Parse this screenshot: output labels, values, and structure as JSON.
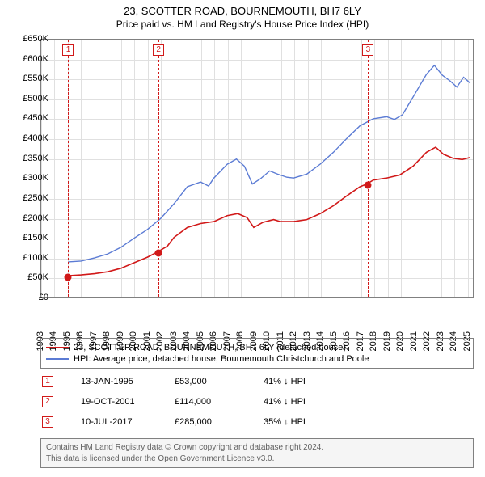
{
  "title_line1": "23, SCOTTER ROAD, BOURNEMOUTH, BH7 6LY",
  "title_line2": "Price paid vs. HM Land Registry's House Price Index (HPI)",
  "chart": {
    "type": "line",
    "background_color": "#ffffff",
    "grid_color": "#e0e0e0",
    "border_color": "#808080",
    "x_years": [
      1993,
      1994,
      1995,
      1996,
      1997,
      1998,
      1999,
      2000,
      2001,
      2002,
      2003,
      2004,
      2005,
      2006,
      2007,
      2008,
      2009,
      2010,
      2011,
      2012,
      2013,
      2014,
      2015,
      2016,
      2017,
      2018,
      2019,
      2020,
      2021,
      2022,
      2023,
      2024,
      2025
    ],
    "xlim": [
      1993,
      2025.5
    ],
    "ylim": [
      0,
      650000
    ],
    "ytick_step": 50000,
    "yticks": [
      "£0",
      "£50K",
      "£100K",
      "£150K",
      "£200K",
      "£250K",
      "£300K",
      "£350K",
      "£400K",
      "£450K",
      "£500K",
      "£550K",
      "£600K",
      "£650K"
    ],
    "series": [
      {
        "name": "23, SCOTTER ROAD, BOURNEMOUTH, BH7 6LY (detached house)",
        "color": "#d11919",
        "width": 1.6,
        "points": [
          [
            1995.03,
            53000
          ],
          [
            1996.0,
            55000
          ],
          [
            1997.0,
            58000
          ],
          [
            1998.0,
            63000
          ],
          [
            1999.0,
            72000
          ],
          [
            2000.0,
            86000
          ],
          [
            2001.0,
            100000
          ],
          [
            2001.8,
            114000
          ],
          [
            2002.5,
            128000
          ],
          [
            2003.0,
            150000
          ],
          [
            2004.0,
            175000
          ],
          [
            2005.0,
            185000
          ],
          [
            2006.0,
            190000
          ],
          [
            2007.0,
            205000
          ],
          [
            2007.8,
            210000
          ],
          [
            2008.5,
            200000
          ],
          [
            2009.0,
            175000
          ],
          [
            2009.7,
            188000
          ],
          [
            2010.5,
            195000
          ],
          [
            2011.0,
            190000
          ],
          [
            2012.0,
            190000
          ],
          [
            2013.0,
            195000
          ],
          [
            2014.0,
            210000
          ],
          [
            2015.0,
            230000
          ],
          [
            2016.0,
            255000
          ],
          [
            2017.0,
            278000
          ],
          [
            2017.52,
            285000
          ],
          [
            2018.0,
            295000
          ],
          [
            2019.0,
            300000
          ],
          [
            2020.0,
            308000
          ],
          [
            2021.0,
            330000
          ],
          [
            2022.0,
            365000
          ],
          [
            2022.7,
            378000
          ],
          [
            2023.3,
            360000
          ],
          [
            2024.0,
            350000
          ],
          [
            2024.7,
            347000
          ],
          [
            2025.3,
            352000
          ]
        ]
      },
      {
        "name": "HPI: Average price, detached house, Bournemouth Christchurch and Poole",
        "color": "#5b7bd4",
        "width": 1.4,
        "points": [
          [
            1995.03,
            88000
          ],
          [
            1996.0,
            90000
          ],
          [
            1997.0,
            98000
          ],
          [
            1998.0,
            108000
          ],
          [
            1999.0,
            125000
          ],
          [
            2000.0,
            148000
          ],
          [
            2001.0,
            170000
          ],
          [
            2002.0,
            198000
          ],
          [
            2003.0,
            235000
          ],
          [
            2004.0,
            278000
          ],
          [
            2005.0,
            290000
          ],
          [
            2005.6,
            280000
          ],
          [
            2006.0,
            300000
          ],
          [
            2007.0,
            335000
          ],
          [
            2007.7,
            348000
          ],
          [
            2008.3,
            330000
          ],
          [
            2008.9,
            285000
          ],
          [
            2009.5,
            298000
          ],
          [
            2010.2,
            318000
          ],
          [
            2010.8,
            310000
          ],
          [
            2011.5,
            302000
          ],
          [
            2012.0,
            300000
          ],
          [
            2013.0,
            310000
          ],
          [
            2014.0,
            335000
          ],
          [
            2015.0,
            365000
          ],
          [
            2016.0,
            400000
          ],
          [
            2017.0,
            432000
          ],
          [
            2018.0,
            450000
          ],
          [
            2019.0,
            455000
          ],
          [
            2019.6,
            448000
          ],
          [
            2020.2,
            460000
          ],
          [
            2021.0,
            505000
          ],
          [
            2022.0,
            562000
          ],
          [
            2022.6,
            585000
          ],
          [
            2023.2,
            560000
          ],
          [
            2023.8,
            545000
          ],
          [
            2024.3,
            530000
          ],
          [
            2024.8,
            555000
          ],
          [
            2025.3,
            540000
          ]
        ]
      }
    ],
    "markers": [
      {
        "n": "1",
        "color": "#d11919",
        "x": 1995.03,
        "y": 53000
      },
      {
        "n": "2",
        "color": "#d11919",
        "x": 2001.8,
        "y": 114000
      },
      {
        "n": "3",
        "color": "#d11919",
        "x": 2017.52,
        "y": 285000
      }
    ]
  },
  "legend": [
    {
      "color": "#d11919",
      "label": "23, SCOTTER ROAD, BOURNEMOUTH, BH7 6LY (detached house)"
    },
    {
      "color": "#5b7bd4",
      "label": "HPI: Average price, detached house, Bournemouth Christchurch and Poole"
    }
  ],
  "sales": [
    {
      "n": "1",
      "color": "#d11919",
      "date": "13-JAN-1995",
      "price": "£53,000",
      "diff": "41% ↓ HPI"
    },
    {
      "n": "2",
      "color": "#d11919",
      "date": "19-OCT-2001",
      "price": "£114,000",
      "diff": "41% ↓ HPI"
    },
    {
      "n": "3",
      "color": "#d11919",
      "date": "10-JUL-2017",
      "price": "£285,000",
      "diff": "35% ↓ HPI"
    }
  ],
  "footer_line1": "Contains HM Land Registry data © Crown copyright and database right 2024.",
  "footer_line2": "This data is licensed under the Open Government Licence v3.0."
}
